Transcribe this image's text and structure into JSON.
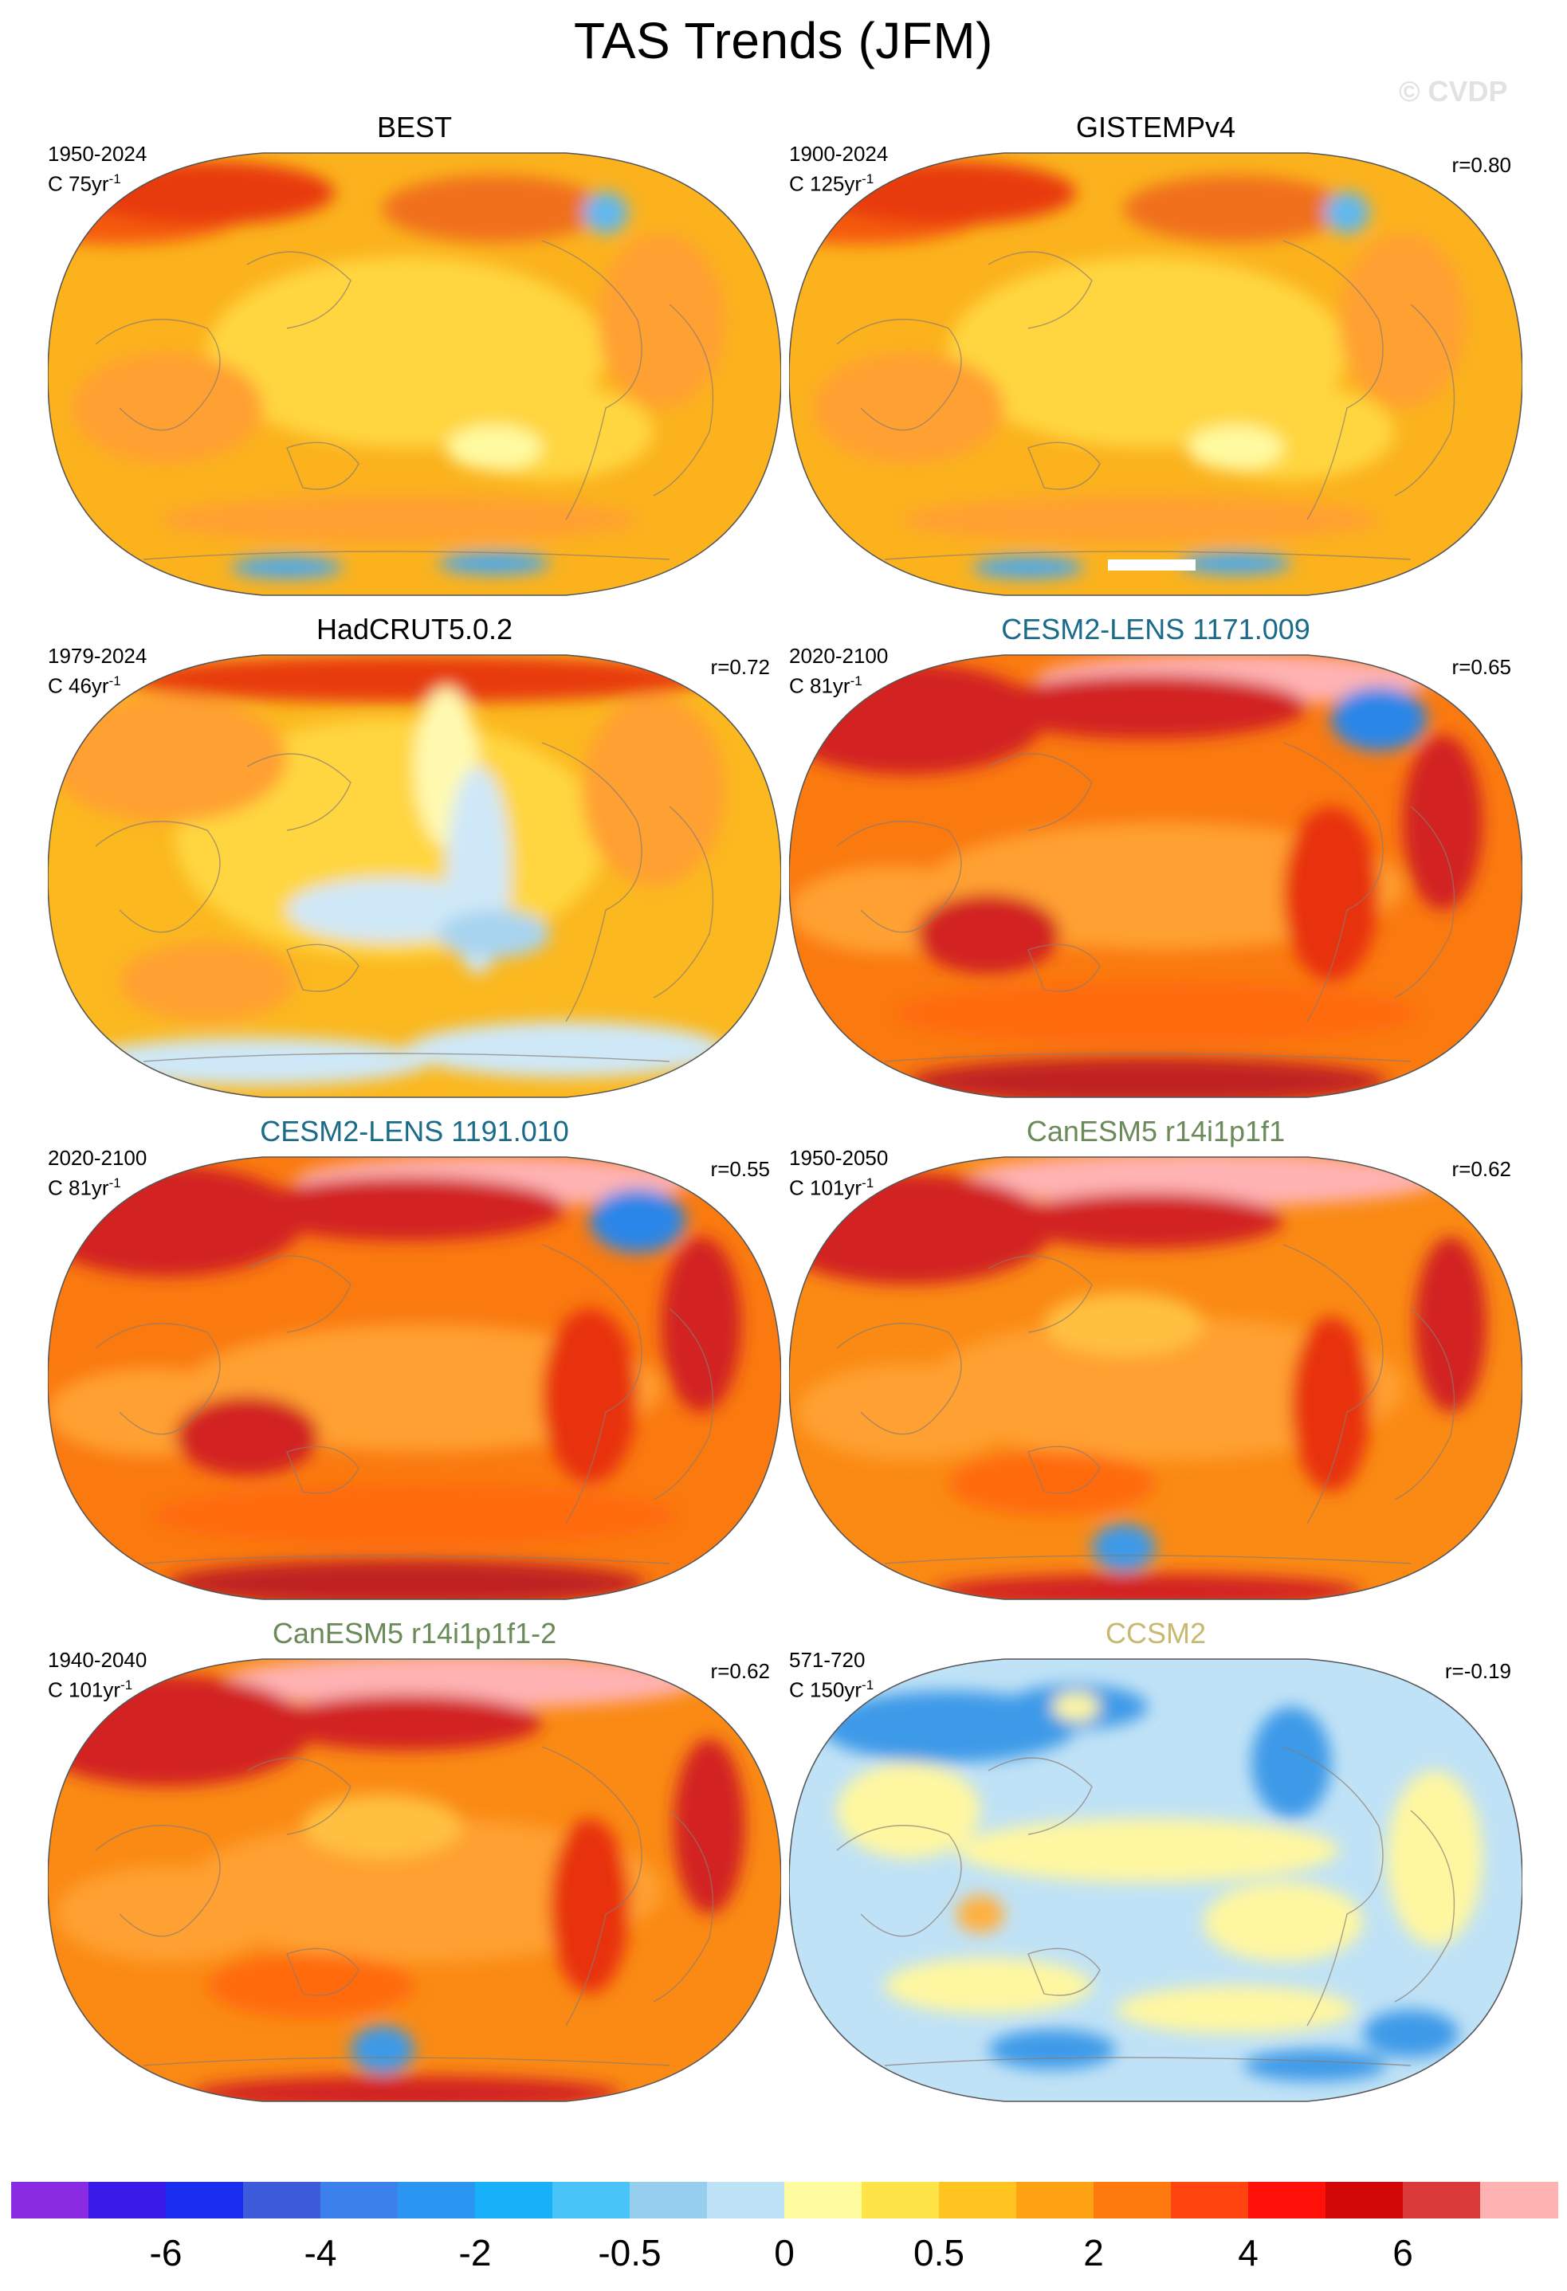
{
  "title": "TAS Trends (JFM)",
  "watermark": "© CVDP",
  "panels": [
    {
      "title": "BEST",
      "title_color": "#000000",
      "period": "1950-2024",
      "units_prefix": "C 75yr",
      "units_exp": "-1",
      "r": "",
      "base": "#fbb21d",
      "pattern": "obs_warm",
      "has_gap": false
    },
    {
      "title": "GISTEMPv4",
      "title_color": "#000000",
      "period": "1900-2024",
      "units_prefix": "C 125yr",
      "units_exp": "-1",
      "r": "r=0.80",
      "base": "#fbb21d",
      "pattern": "obs_warm",
      "has_gap": true
    },
    {
      "title": "HadCRUT5.0.2",
      "title_color": "#000000",
      "period": "1979-2024",
      "units_prefix": "C 46yr",
      "units_exp": "-1",
      "r": "r=0.72",
      "base": "#fbb81f",
      "pattern": "obs_mixed",
      "has_gap": false
    },
    {
      "title": "CESM2-LENS 1171.009",
      "title_color": "#1a6a8a",
      "period": "2020-2100",
      "units_prefix": "C 81yr",
      "units_exp": "-1",
      "r": "r=0.65",
      "base": "#fa7a10",
      "pattern": "model_hot",
      "has_gap": false
    },
    {
      "title": "CESM2-LENS 1191.010",
      "title_color": "#1a6a8a",
      "period": "2020-2100",
      "units_prefix": "C 81yr",
      "units_exp": "-1",
      "r": "r=0.55",
      "base": "#fa7a10",
      "pattern": "model_hot",
      "has_gap": false
    },
    {
      "title": "CanESM5 r14i1p1f1",
      "title_color": "#6a8a5a",
      "period": "1950-2050",
      "units_prefix": "C 101yr",
      "units_exp": "-1",
      "r": "r=0.62",
      "base": "#fa8a14",
      "pattern": "model_warm",
      "has_gap": false
    },
    {
      "title": "CanESM5 r14i1p1f1-2",
      "title_color": "#6a8a5a",
      "period": "1940-2040",
      "units_prefix": "C 101yr",
      "units_exp": "-1",
      "r": "r=0.62",
      "base": "#fa8a14",
      "pattern": "model_warm",
      "has_gap": false
    },
    {
      "title": "CCSM2",
      "title_color": "#c8b870",
      "period": "571-720",
      "units_prefix": "C 150yr",
      "units_exp": "-1",
      "r": "r=-0.19",
      "base": "#c0e2f6",
      "pattern": "cool",
      "has_gap": false
    }
  ],
  "colorbar": {
    "colors": [
      "#8a2be2",
      "#3a1ae8",
      "#1a2ef0",
      "#3c5cdc",
      "#3c80ec",
      "#2a96f2",
      "#18b0f8",
      "#48c4f8",
      "#96cfee",
      "#bfe3f6",
      "#fffca0",
      "#ffe448",
      "#ffc420",
      "#ffa214",
      "#ff7a0e",
      "#ff4410",
      "#ff1008",
      "#d20808",
      "#da3a3a",
      "#ffb2b2"
    ],
    "labels": [
      "-6",
      "-4",
      "-2",
      "-0.5",
      "0",
      "0.5",
      "2",
      "4",
      "6"
    ]
  }
}
